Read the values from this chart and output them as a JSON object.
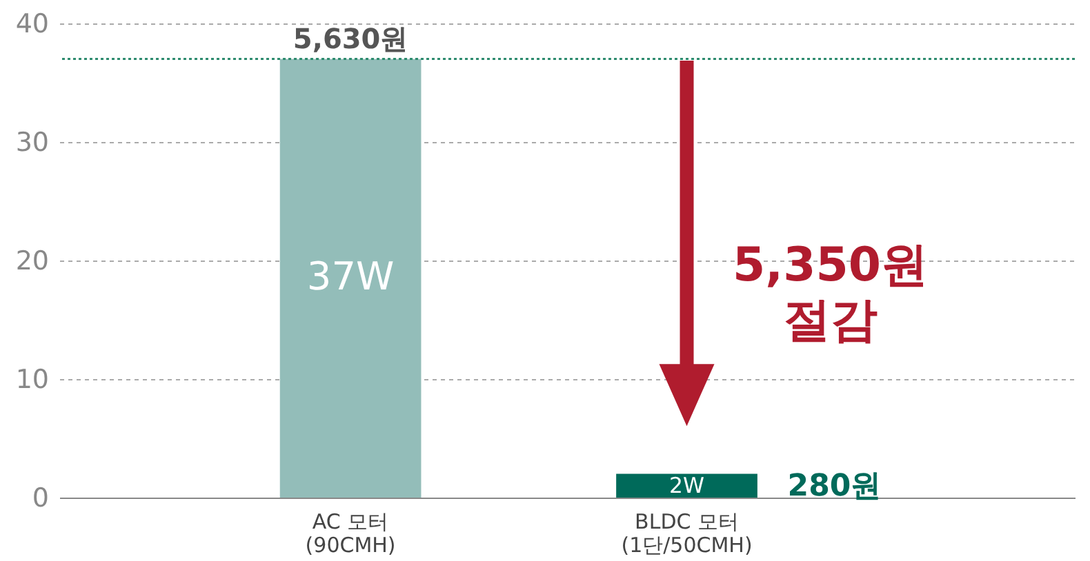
{
  "chart_data": {
    "type": "bar",
    "categories": [
      "AC 모터\n(90CMH)",
      "BLDC 모터\n(1단/50CMH)"
    ],
    "values": [
      37,
      2
    ],
    "colors": [
      "#93bdb9",
      "#006a5a"
    ],
    "value_labels": [
      "37W",
      "2W"
    ],
    "ylim": [
      0,
      40
    ],
    "yticks": [
      0,
      10,
      20,
      30,
      40
    ],
    "grid": "y",
    "ref_lines": [
      {
        "axis": "y",
        "value": 37,
        "color": "#2e8b6e",
        "line_style": "dotted"
      }
    ],
    "annotations": [
      {
        "text": "5,630원",
        "x": "AC 모터\n(90CMH)",
        "y": 37
      },
      "5,350원\n절감",
      "280원"
    ]
  }
}
